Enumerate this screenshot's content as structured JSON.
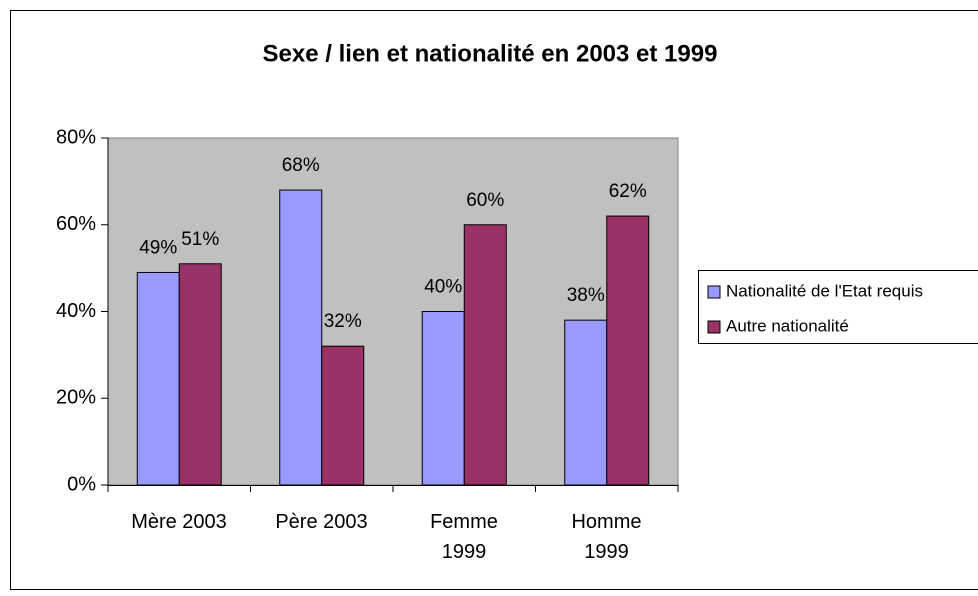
{
  "chart_data": {
    "type": "bar",
    "title": "Sexe / lien et nationalité en 2003 et 1999",
    "categories": [
      "Mère 2003",
      "Père 2003",
      "Femme\n1999",
      "Homme\n1999"
    ],
    "series": [
      {
        "name": "Nationalité de l'Etat requis",
        "color": "#9999ff",
        "values": [
          49,
          68,
          40,
          38
        ],
        "value_labels": [
          "49%",
          "68%",
          "40%",
          "38%"
        ]
      },
      {
        "name": "Autre nationalité",
        "color": "#993366",
        "values": [
          51,
          32,
          60,
          62
        ],
        "value_labels": [
          "51%",
          "32%",
          "60%",
          "62%"
        ]
      }
    ],
    "ylim": [
      0,
      80
    ],
    "yticks": [
      {
        "value": 0,
        "label": "0%"
      },
      {
        "value": 20,
        "label": "20%"
      },
      {
        "value": 40,
        "label": "40%"
      },
      {
        "value": 60,
        "label": "60%"
      },
      {
        "value": 80,
        "label": "80%"
      }
    ],
    "grid": false,
    "legend": "right",
    "plot_background": "#c0c0c0"
  }
}
